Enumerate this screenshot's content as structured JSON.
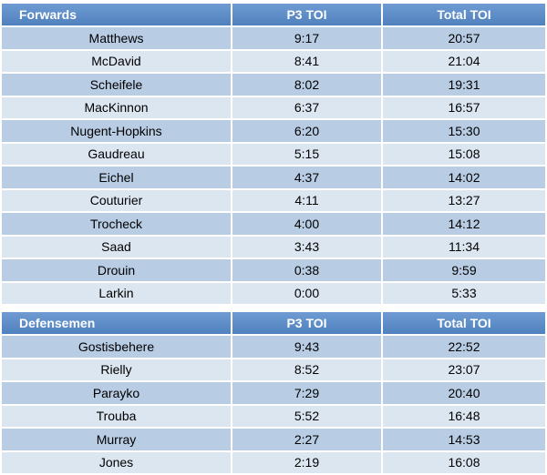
{
  "forwards": {
    "headers": [
      "Forwards",
      "P3 TOI",
      "Total TOI"
    ],
    "rows": [
      [
        "Matthews",
        "9:17",
        "20:57"
      ],
      [
        "McDavid",
        "8:41",
        "21:04"
      ],
      [
        "Scheifele",
        "8:02",
        "19:31"
      ],
      [
        "MacKinnon",
        "6:37",
        "16:57"
      ],
      [
        "Nugent-Hopkins",
        "6:20",
        "15:30"
      ],
      [
        "Gaudreau",
        "5:15",
        "15:08"
      ],
      [
        "Eichel",
        "4:37",
        "14:02"
      ],
      [
        "Couturier",
        "4:11",
        "13:27"
      ],
      [
        "Trocheck",
        "4:00",
        "14:12"
      ],
      [
        "Saad",
        "3:43",
        "11:34"
      ],
      [
        "Drouin",
        "0:38",
        "9:59"
      ],
      [
        "Larkin",
        "0:00",
        "5:33"
      ]
    ]
  },
  "defensemen": {
    "headers": [
      "Defensemen",
      "P3 TOI",
      "Total TOI"
    ],
    "rows": [
      [
        "Gostisbehere",
        "9:43",
        "22:52"
      ],
      [
        "Rielly",
        "8:52",
        "23:07"
      ],
      [
        "Parayko",
        "7:29",
        "20:40"
      ],
      [
        "Trouba",
        "5:52",
        "16:48"
      ],
      [
        "Murray",
        "2:27",
        "14:53"
      ],
      [
        "Jones",
        "2:19",
        "16:08"
      ]
    ]
  },
  "colors": {
    "header_bg": "#4f81bd",
    "row_dark": "#b8cce4",
    "row_light": "#dce6f1",
    "header_text": "#ffffff"
  }
}
